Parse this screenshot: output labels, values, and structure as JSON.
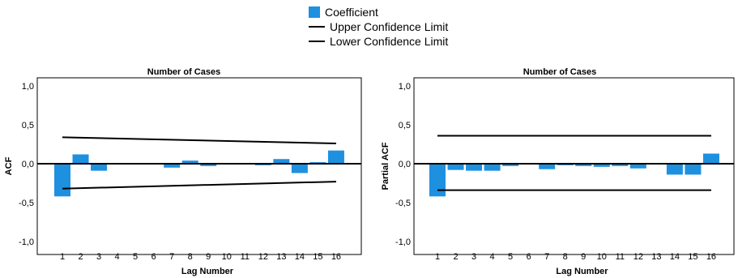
{
  "legend": {
    "coefficient": {
      "label": "Coefficient",
      "color": "#1e90e0"
    },
    "upper": {
      "label": "Upper Confidence Limit",
      "color": "#000000"
    },
    "lower": {
      "label": "Lower Confidence Limit",
      "color": "#000000"
    }
  },
  "chart_data": [
    {
      "type": "bar",
      "title": "Number of Cases",
      "xlabel": "Lag Number",
      "ylabel": "ACF",
      "ylim": [
        -1.0,
        1.0
      ],
      "yticks": [
        "1,0",
        "0,5",
        "0,0",
        "-0,5",
        "-1,0"
      ],
      "categories": [
        "1",
        "2",
        "3",
        "4",
        "5",
        "6",
        "7",
        "8",
        "9",
        "10",
        "11",
        "12",
        "13",
        "14",
        "15",
        "16"
      ],
      "series": [
        {
          "name": "Coefficient",
          "color": "#1e90e0",
          "values": [
            -0.42,
            0.12,
            -0.09,
            0.0,
            0.01,
            0.01,
            -0.05,
            0.04,
            -0.03,
            0.0,
            0.0,
            -0.02,
            0.06,
            -0.12,
            0.02,
            0.17
          ]
        },
        {
          "name": "Upper Confidence Limit",
          "color": "#000000",
          "line_from": 0.34,
          "line_to": 0.26
        },
        {
          "name": "Lower Confidence Limit",
          "color": "#000000",
          "line_from": -0.32,
          "line_to": -0.23
        }
      ],
      "grid": false
    },
    {
      "type": "bar",
      "title": "Number of Cases",
      "xlabel": "Lag Number",
      "ylabel": "Partial ACF",
      "ylim": [
        -1.0,
        1.0
      ],
      "yticks": [
        "1,0",
        "0,5",
        "0,0",
        "-0,5",
        "-1,0"
      ],
      "categories": [
        "1",
        "2",
        "3",
        "4",
        "5",
        "6",
        "7",
        "8",
        "9",
        "10",
        "11",
        "12",
        "13",
        "14",
        "15",
        "16"
      ],
      "series": [
        {
          "name": "Coefficient",
          "color": "#1e90e0",
          "values": [
            -0.42,
            -0.08,
            -0.09,
            -0.09,
            -0.03,
            0.0,
            -0.07,
            -0.02,
            -0.03,
            -0.04,
            -0.03,
            -0.06,
            0.0,
            -0.14,
            -0.14,
            0.13
          ]
        },
        {
          "name": "Upper Confidence Limit",
          "color": "#000000",
          "line_from": 0.36,
          "line_to": 0.36
        },
        {
          "name": "Lower Confidence Limit",
          "color": "#000000",
          "line_from": -0.34,
          "line_to": -0.34
        }
      ],
      "grid": false
    }
  ]
}
